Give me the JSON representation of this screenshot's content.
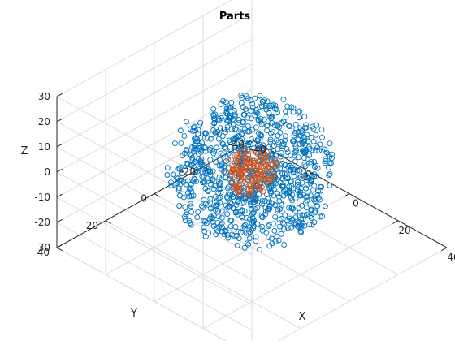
{
  "chart_data": {
    "type": "scatter",
    "title": "Parts",
    "xlabel": "X",
    "ylabel": "Y",
    "zlabel": "Z",
    "xlim": [
      -40,
      40
    ],
    "ylim": [
      -40,
      40
    ],
    "zlim": [
      -30,
      30
    ],
    "x_ticks": [
      "-40",
      "-20",
      "0",
      "20",
      "40"
    ],
    "y_ticks": [
      "-40",
      "-20",
      "0",
      "20",
      "40"
    ],
    "z_ticks": [
      "-30",
      "-20",
      "-10",
      "0",
      "10",
      "20",
      "30"
    ],
    "grid": true,
    "marker": "circle",
    "series": [
      {
        "color": "#0072BD",
        "distribution": "roughly uniform ball centered at origin",
        "center": [
          0,
          0,
          0
        ],
        "radius": 25,
        "count": 1000
      },
      {
        "color": "#D95319",
        "distribution": "dense inner core centered at origin",
        "center": [
          0,
          0,
          0
        ],
        "radius": 8,
        "count": 150
      }
    ]
  }
}
